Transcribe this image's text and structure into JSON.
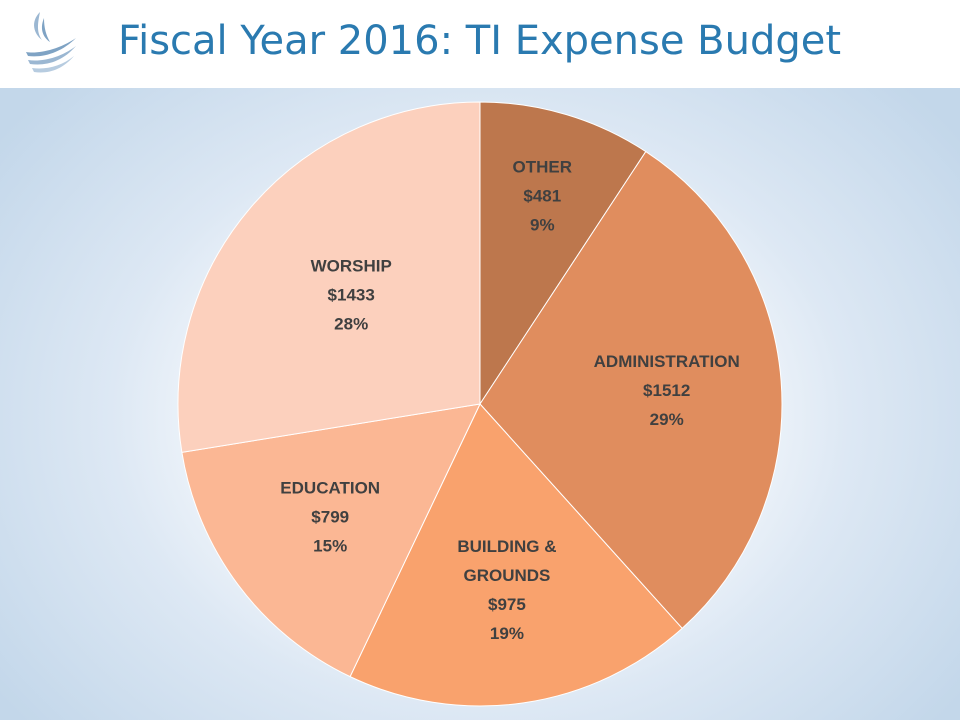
{
  "header": {
    "title": "Fiscal Year 2016: TI Expense Budget"
  },
  "chart_data": {
    "type": "pie",
    "title": "Fiscal Year 2016: TI Expense Budget",
    "start_angle": "12 o'clock",
    "direction": "clockwise",
    "slices": [
      {
        "category": "OTHER",
        "value": 481,
        "value_label": "$481",
        "percent_label": "9%",
        "color": "#bd774d"
      },
      {
        "category": "ADMINISTRATION",
        "value": 1512,
        "value_label": "$1512",
        "percent_label": "29%",
        "color": "#e08d5e"
      },
      {
        "category": "BUILDING & GROUNDS",
        "value": 975,
        "value_label": "$975",
        "percent_label": "19%",
        "color": "#f9a26d"
      },
      {
        "category": "EDUCATION",
        "value": 799,
        "value_label": "$799",
        "percent_label": "15%",
        "color": "#fbb794"
      },
      {
        "category": "WORSHIP",
        "value": 1433,
        "value_label": "$1433",
        "percent_label": "28%",
        "color": "#fcd0bd"
      }
    ],
    "label_color": "#404040",
    "slice_border_color": "#ffffff"
  },
  "colors": {
    "title": "#2a7ab0",
    "background_edge": "#c3d7ea",
    "logo": "#7fa3c4"
  },
  "icons": {
    "logo": "flame-logo-icon"
  }
}
